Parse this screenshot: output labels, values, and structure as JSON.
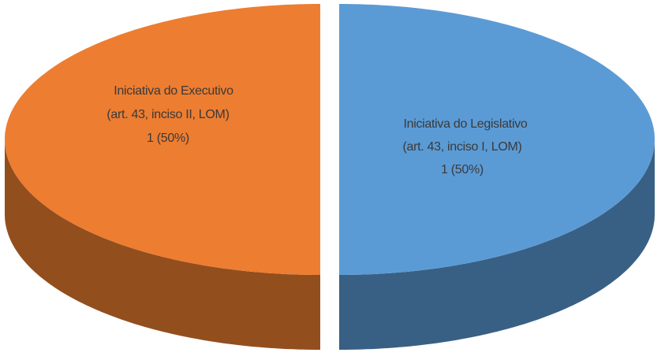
{
  "chart_data": {
    "type": "pie3d",
    "categories": [
      "Iniciativa  do Executivo",
      "Iniciativa  do Legislativo"
    ],
    "category_notes": [
      "(art. 43, inciso II,  LOM)",
      "(art. 43, inciso I,  LOM)"
    ],
    "values": [
      1,
      1
    ],
    "value_labels": [
      "1 (50%)",
      "1 (50%)"
    ],
    "colors": [
      "#ed7d31",
      "#5b9bd5"
    ]
  }
}
